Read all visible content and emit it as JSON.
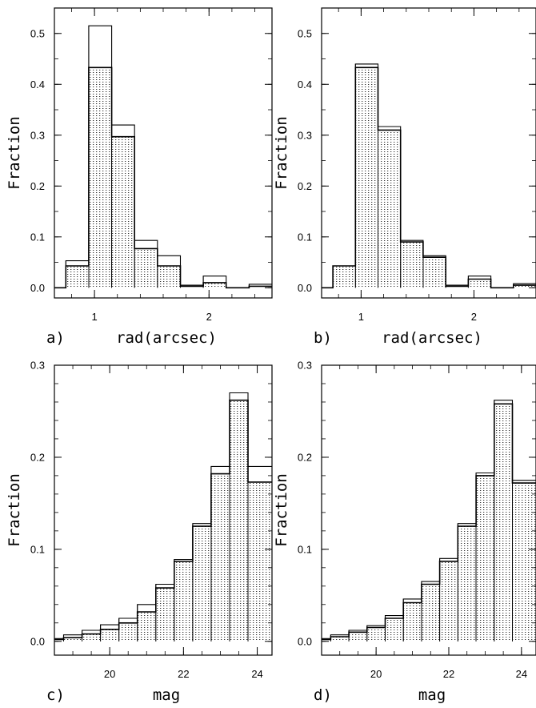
{
  "panels": [
    {
      "id": "a",
      "tag": "a)"
    },
    {
      "id": "b",
      "tag": "b)"
    },
    {
      "id": "c",
      "tag": "c)"
    },
    {
      "id": "d",
      "tag": "d)"
    }
  ],
  "chart_data": [
    {
      "type": "bar",
      "panel": "a)",
      "xlabel": "rad(arcsec)",
      "ylabel": "Fraction",
      "xlim": [
        0.65,
        2.55
      ],
      "ylim": [
        -0.02,
        0.55
      ],
      "xticks": [
        1,
        2
      ],
      "yticks": [
        0.0,
        0.1,
        0.2,
        0.3,
        0.4,
        0.5
      ],
      "ytick_labels": [
        "0.0",
        "0.1",
        "0.2",
        "0.3",
        "0.4",
        "0.5"
      ],
      "bin_edges": [
        0.65,
        0.75,
        0.95,
        1.15,
        1.35,
        1.55,
        1.75,
        1.95,
        2.15,
        2.35,
        2.55
      ],
      "series": [
        {
          "style": "outline",
          "values": [
            0.0,
            0.053,
            0.515,
            0.32,
            0.093,
            0.063,
            0.005,
            0.023,
            0.0,
            0.007
          ]
        },
        {
          "style": "dotted-fill",
          "values": [
            0.0,
            0.043,
            0.433,
            0.297,
            0.077,
            0.043,
            0.003,
            0.01,
            0.0,
            0.003
          ]
        }
      ]
    },
    {
      "type": "bar",
      "panel": "b)",
      "xlabel": "rad(arcsec)",
      "ylabel": "Fraction",
      "xlim": [
        0.65,
        2.55
      ],
      "ylim": [
        -0.02,
        0.55
      ],
      "xticks": [
        1,
        2
      ],
      "yticks": [
        0.0,
        0.1,
        0.2,
        0.3,
        0.4,
        0.5
      ],
      "ytick_labels": [
        "0.0",
        "0.1",
        "0.2",
        "0.3",
        "0.4",
        "0.5"
      ],
      "bin_edges": [
        0.65,
        0.75,
        0.95,
        1.15,
        1.35,
        1.55,
        1.75,
        1.95,
        2.15,
        2.35,
        2.55
      ],
      "series": [
        {
          "style": "outline",
          "values": [
            0.0,
            0.043,
            0.44,
            0.317,
            0.093,
            0.063,
            0.005,
            0.023,
            0.0,
            0.008
          ]
        },
        {
          "style": "dotted-fill",
          "values": [
            0.0,
            0.043,
            0.433,
            0.31,
            0.09,
            0.06,
            0.003,
            0.017,
            0.0,
            0.005
          ]
        }
      ]
    },
    {
      "type": "bar",
      "panel": "c)",
      "xlabel": "mag",
      "ylabel": "Fraction",
      "xlim": [
        18.5,
        24.4
      ],
      "ylim": [
        -0.015,
        0.3
      ],
      "xticks": [
        20,
        22,
        24
      ],
      "yticks": [
        0.0,
        0.1,
        0.2,
        0.3
      ],
      "ytick_labels": [
        "0.0",
        "0.1",
        "0.2",
        "0.3"
      ],
      "bin_edges": [
        18.5,
        18.75,
        19.25,
        19.75,
        20.25,
        20.75,
        21.25,
        21.75,
        22.25,
        22.75,
        23.25,
        23.75,
        24.4
      ],
      "series": [
        {
          "style": "outline",
          "values": [
            0.003,
            0.007,
            0.012,
            0.018,
            0.025,
            0.04,
            0.062,
            0.089,
            0.128,
            0.19,
            0.27,
            0.19
          ]
        },
        {
          "style": "dotted-fill",
          "values": [
            0.002,
            0.004,
            0.008,
            0.013,
            0.02,
            0.032,
            0.058,
            0.087,
            0.125,
            0.182,
            0.262,
            0.173
          ]
        }
      ]
    },
    {
      "type": "bar",
      "panel": "d)",
      "xlabel": "mag",
      "ylabel": "Fraction",
      "xlim": [
        18.5,
        24.4
      ],
      "ylim": [
        -0.015,
        0.3
      ],
      "xticks": [
        20,
        22,
        24
      ],
      "yticks": [
        0.0,
        0.1,
        0.2,
        0.3
      ],
      "ytick_labels": [
        "0.0",
        "0.1",
        "0.2",
        "0.3"
      ],
      "bin_edges": [
        18.5,
        18.75,
        19.25,
        19.75,
        20.25,
        20.75,
        21.25,
        21.75,
        22.25,
        22.75,
        23.25,
        23.75,
        24.4
      ],
      "series": [
        {
          "style": "outline",
          "values": [
            0.003,
            0.007,
            0.012,
            0.017,
            0.028,
            0.046,
            0.065,
            0.09,
            0.128,
            0.183,
            0.262,
            0.175
          ]
        },
        {
          "style": "dotted-fill",
          "values": [
            0.002,
            0.005,
            0.01,
            0.015,
            0.025,
            0.042,
            0.062,
            0.087,
            0.125,
            0.18,
            0.258,
            0.172
          ]
        }
      ]
    }
  ]
}
